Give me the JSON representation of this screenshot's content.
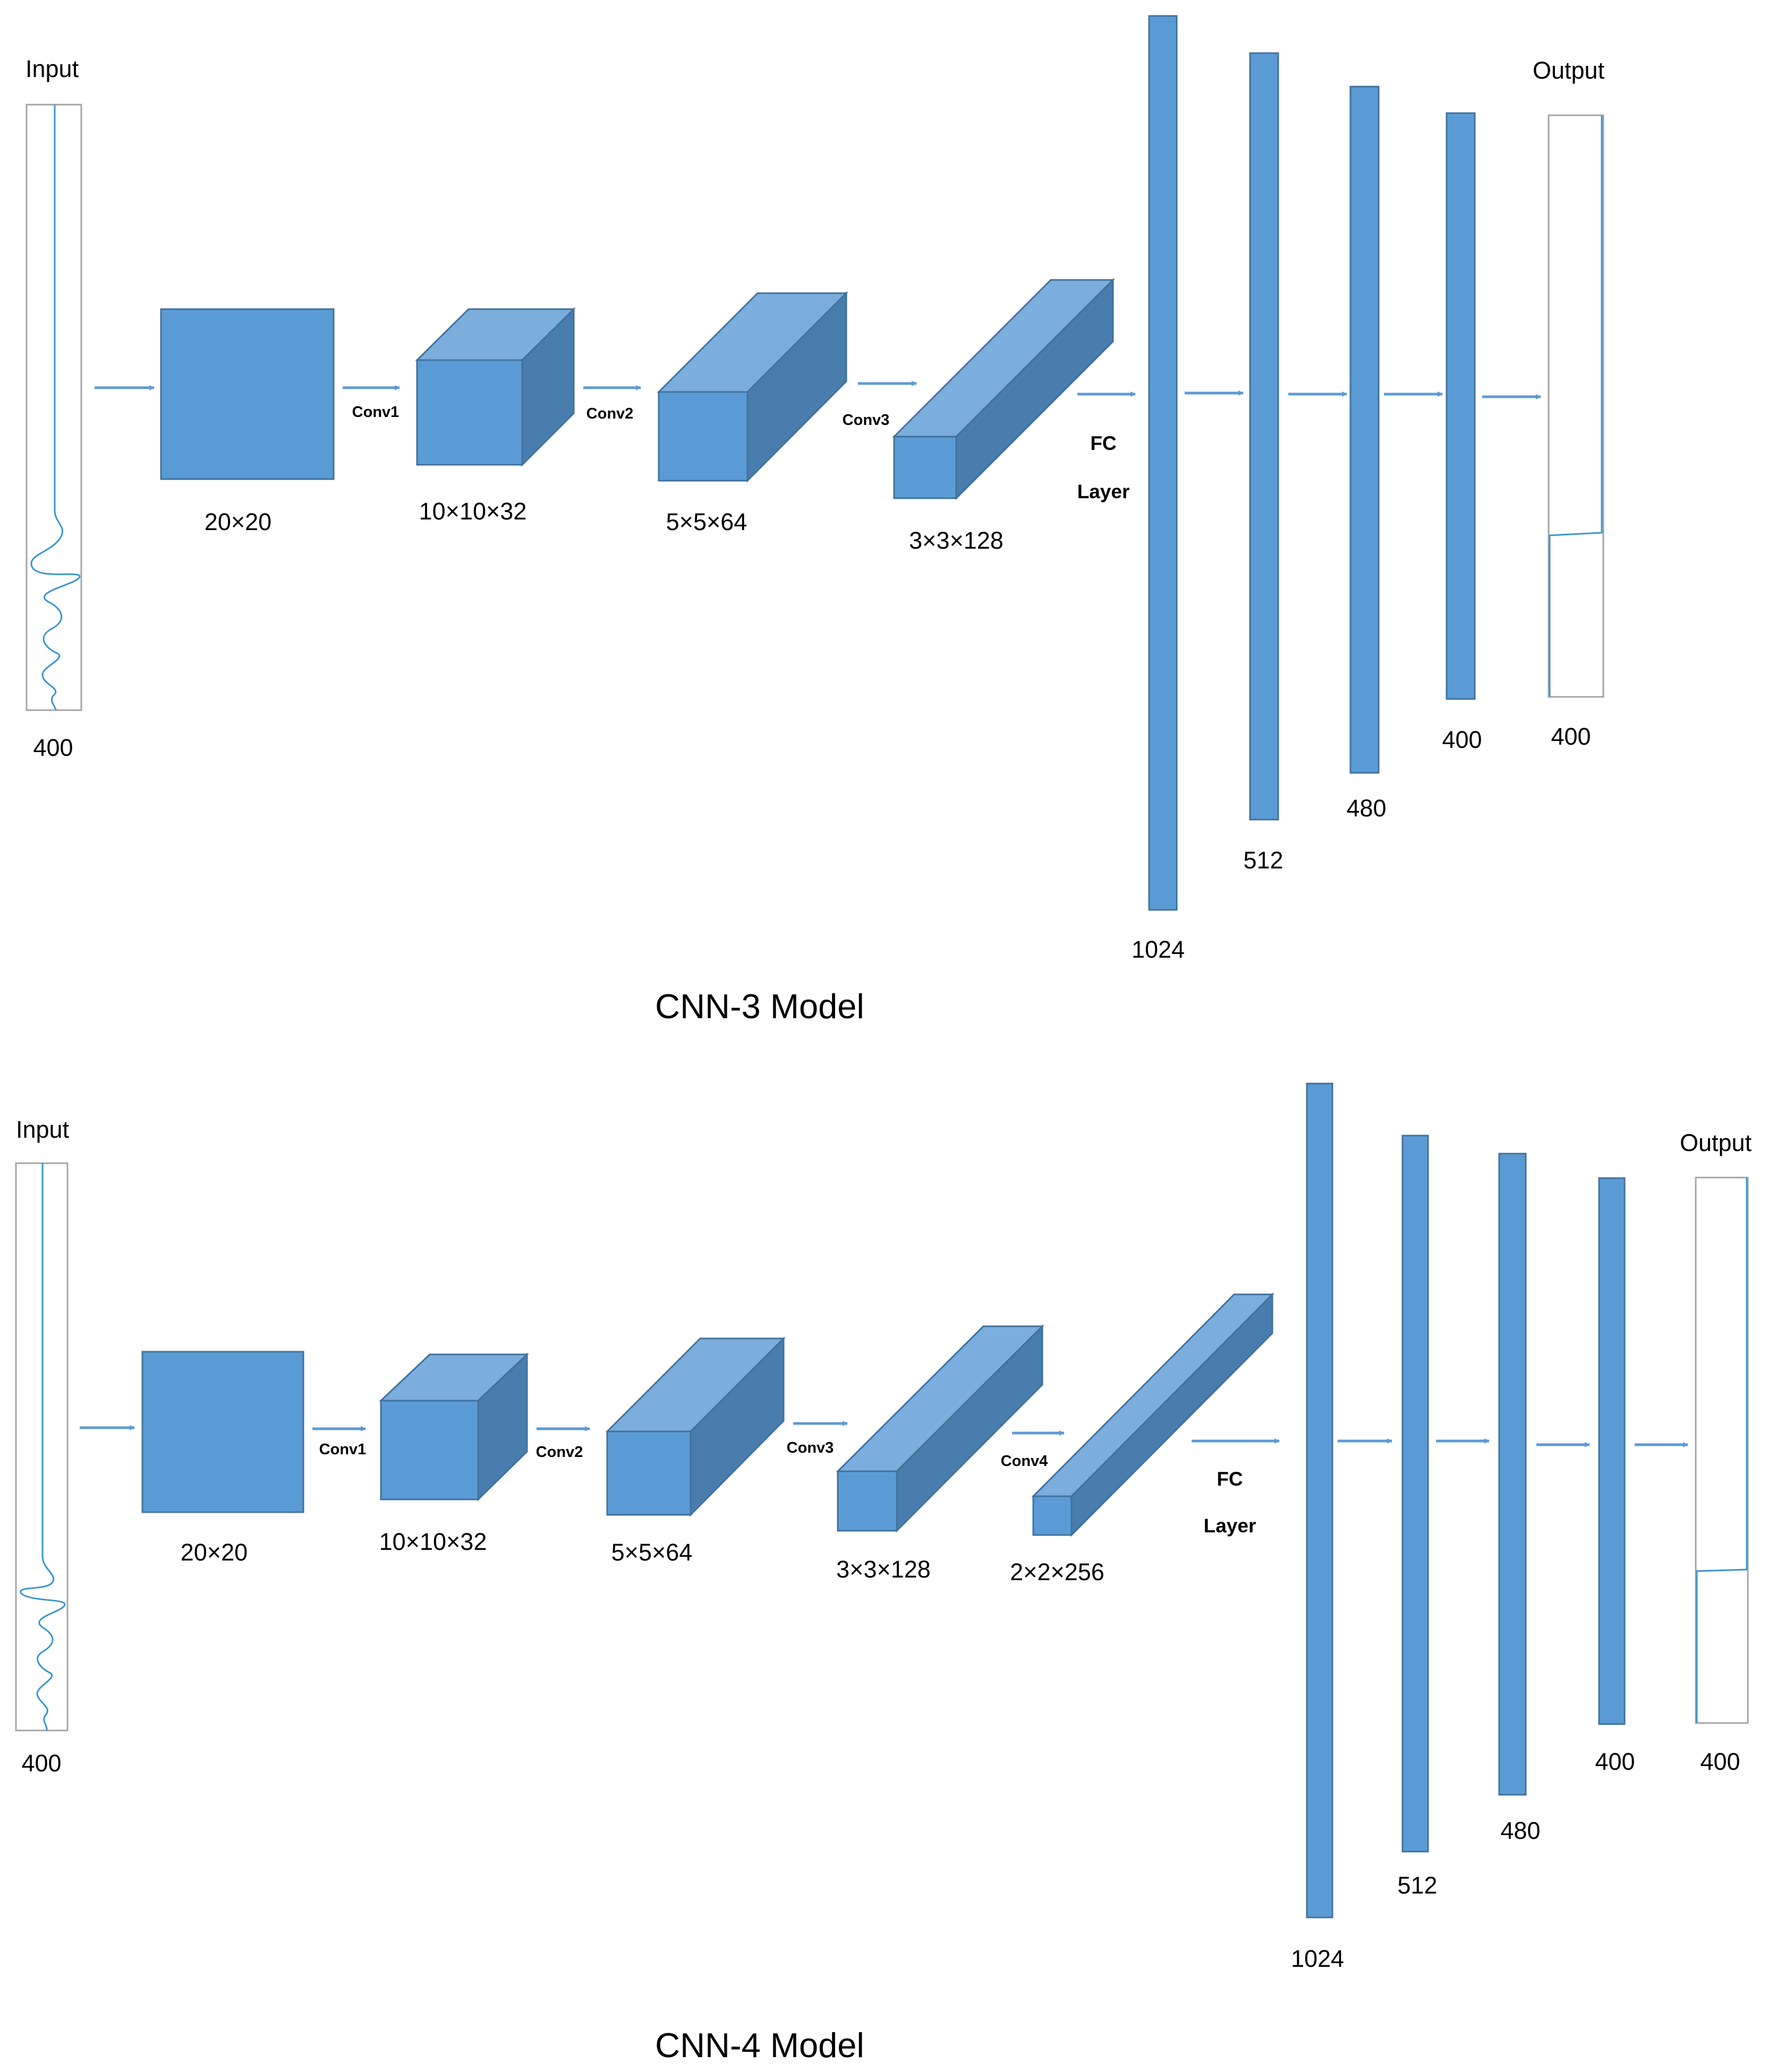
{
  "colors": {
    "face": "#5B9BD5",
    "top": "#7BAEDD",
    "side": "#487DAD",
    "edge": "#41719C",
    "arrow": "#5B9BD5",
    "wave": "#3A96D0",
    "outline": "#A6A6A6"
  },
  "cnn3": {
    "title": "CNN-3 Model",
    "input_label": "Input",
    "input_size": "400",
    "output_label": "Output",
    "output_size": "400",
    "fc_line1": "FC",
    "fc_line2": "Layer",
    "layers": [
      {
        "dims": "20×20"
      },
      {
        "dims": "10×10×32",
        "op": "Conv1"
      },
      {
        "dims": "5×5×64",
        "op": "Conv2"
      },
      {
        "dims": "3×3×128",
        "op": "Conv3"
      }
    ],
    "dense": [
      "1024",
      "512",
      "480",
      "400"
    ]
  },
  "cnn4": {
    "title": "CNN-4 Model",
    "input_label": "Input",
    "input_size": "400",
    "output_label": "Output",
    "output_size": "400",
    "fc_line1": "FC",
    "fc_line2": "Layer",
    "layers": [
      {
        "dims": "20×20"
      },
      {
        "dims": "10×10×32",
        "op": "Conv1"
      },
      {
        "dims": "5×5×64",
        "op": "Conv2"
      },
      {
        "dims": "3×3×128",
        "op": "Conv3"
      },
      {
        "dims": "2×2×256",
        "op": "Conv4"
      }
    ],
    "dense": [
      "1024",
      "512",
      "480",
      "400"
    ]
  }
}
